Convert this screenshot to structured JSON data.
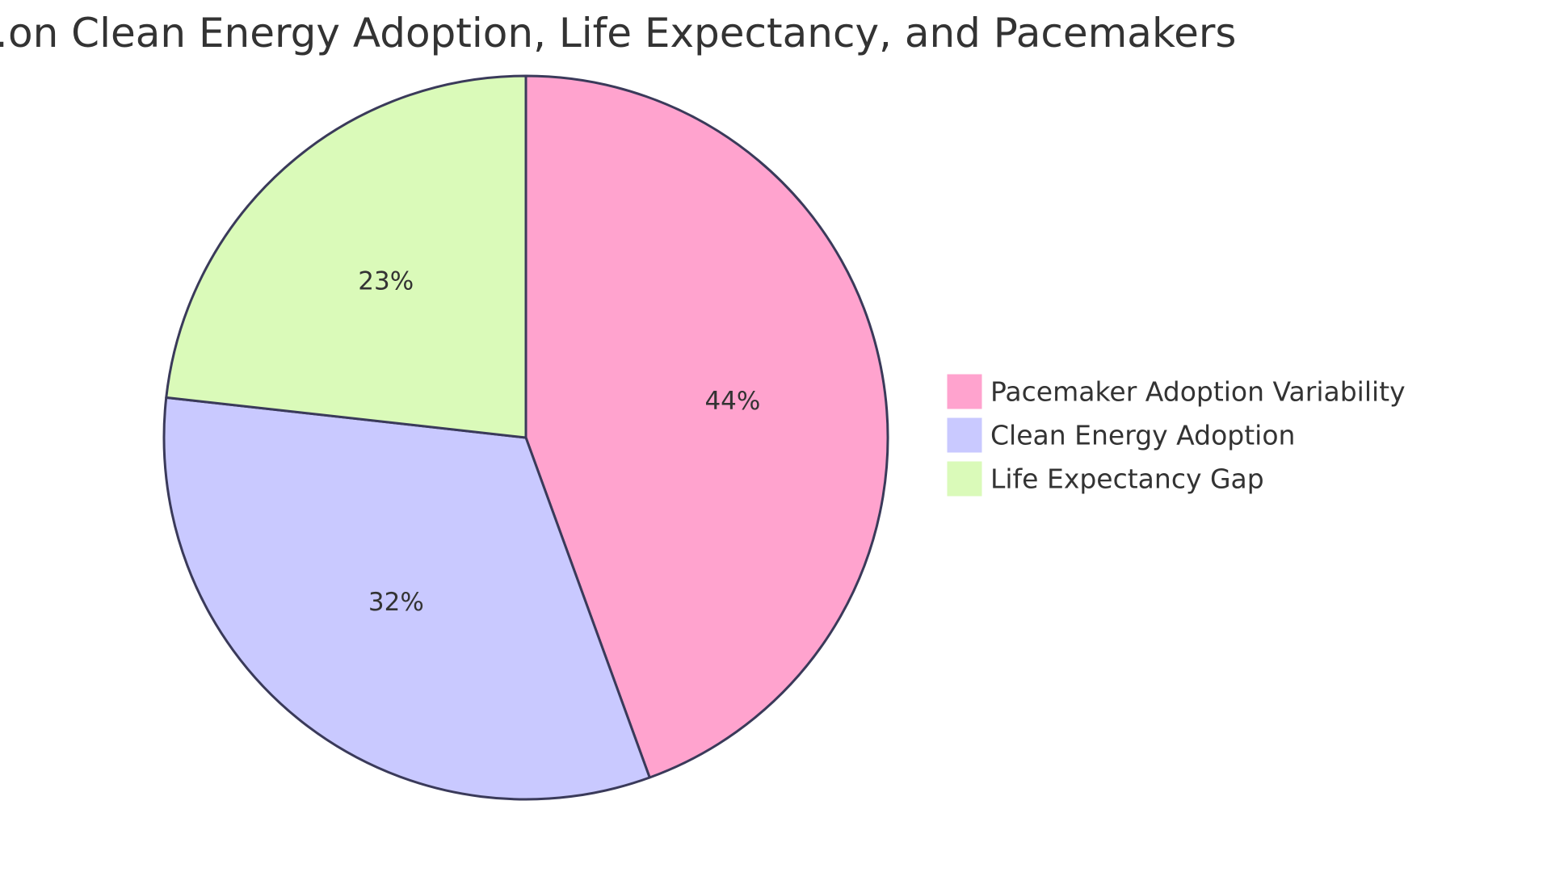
{
  "chart_data": {
    "type": "pie",
    "title": "…on Clean Energy Adoption, Life Expectancy, and Pacemakers",
    "slices": [
      {
        "name": "Pacemaker Adoption Variability",
        "value": 44,
        "label": "44%",
        "color": "#FFA3CE"
      },
      {
        "name": "Clean Energy Adoption",
        "value": 32,
        "label": "32%",
        "color": "#C9C9FF"
      },
      {
        "name": "Life Expectancy Gap",
        "value": 23,
        "label": "23%",
        "color": "#DAFAB9"
      }
    ],
    "legend_position": "right",
    "stroke_color": "#3A3A5A"
  }
}
